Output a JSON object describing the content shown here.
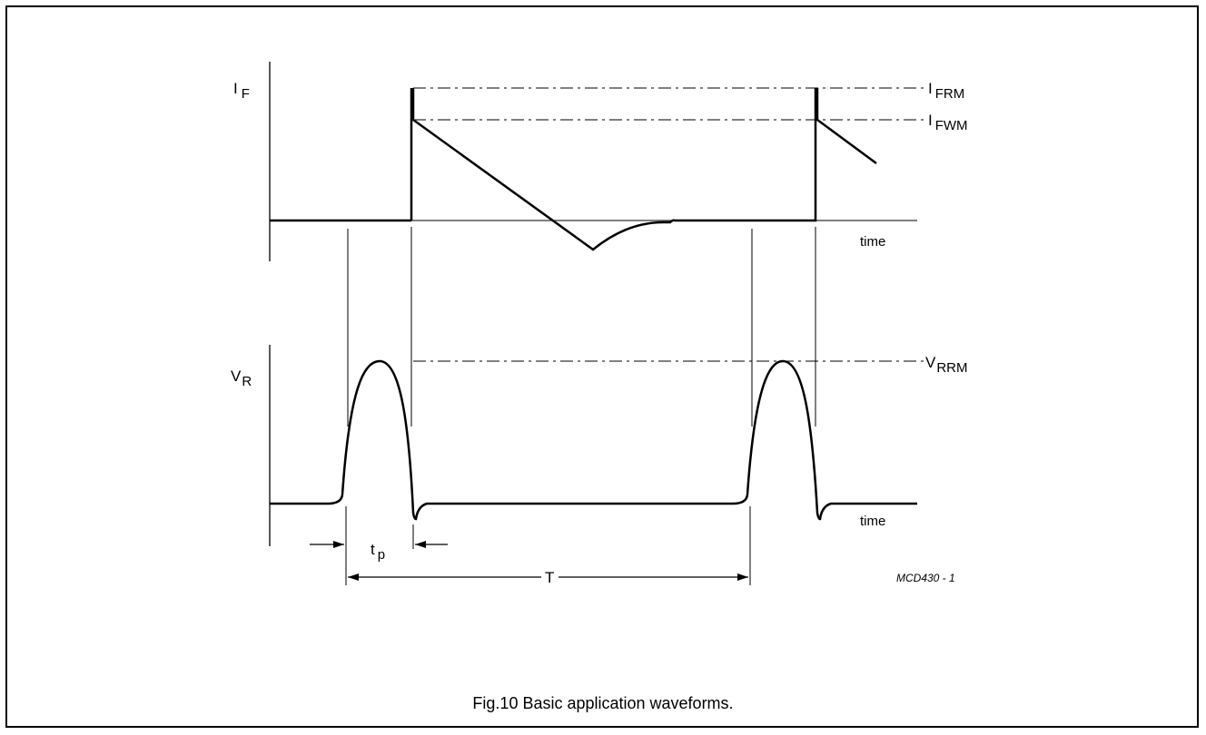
{
  "figure": {
    "caption": "Fig.10  Basic application waveforms.",
    "code": "MCD430 - 1"
  },
  "labels": {
    "if_main": "I",
    "if_sub": "F",
    "ifrm_main": "I",
    "ifrm_sub": "FRM",
    "ifwm_main": "I",
    "ifwm_sub": "FWM",
    "vr_main": "V",
    "vr_sub": "R",
    "vrrm_main": "V",
    "vrrm_sub": "RRM",
    "time_top": "time",
    "time_bottom": "time",
    "tp_main": "t",
    "tp_sub": "p",
    "period": "T"
  },
  "colors": {
    "line": "#000000",
    "background": "#ffffff"
  }
}
